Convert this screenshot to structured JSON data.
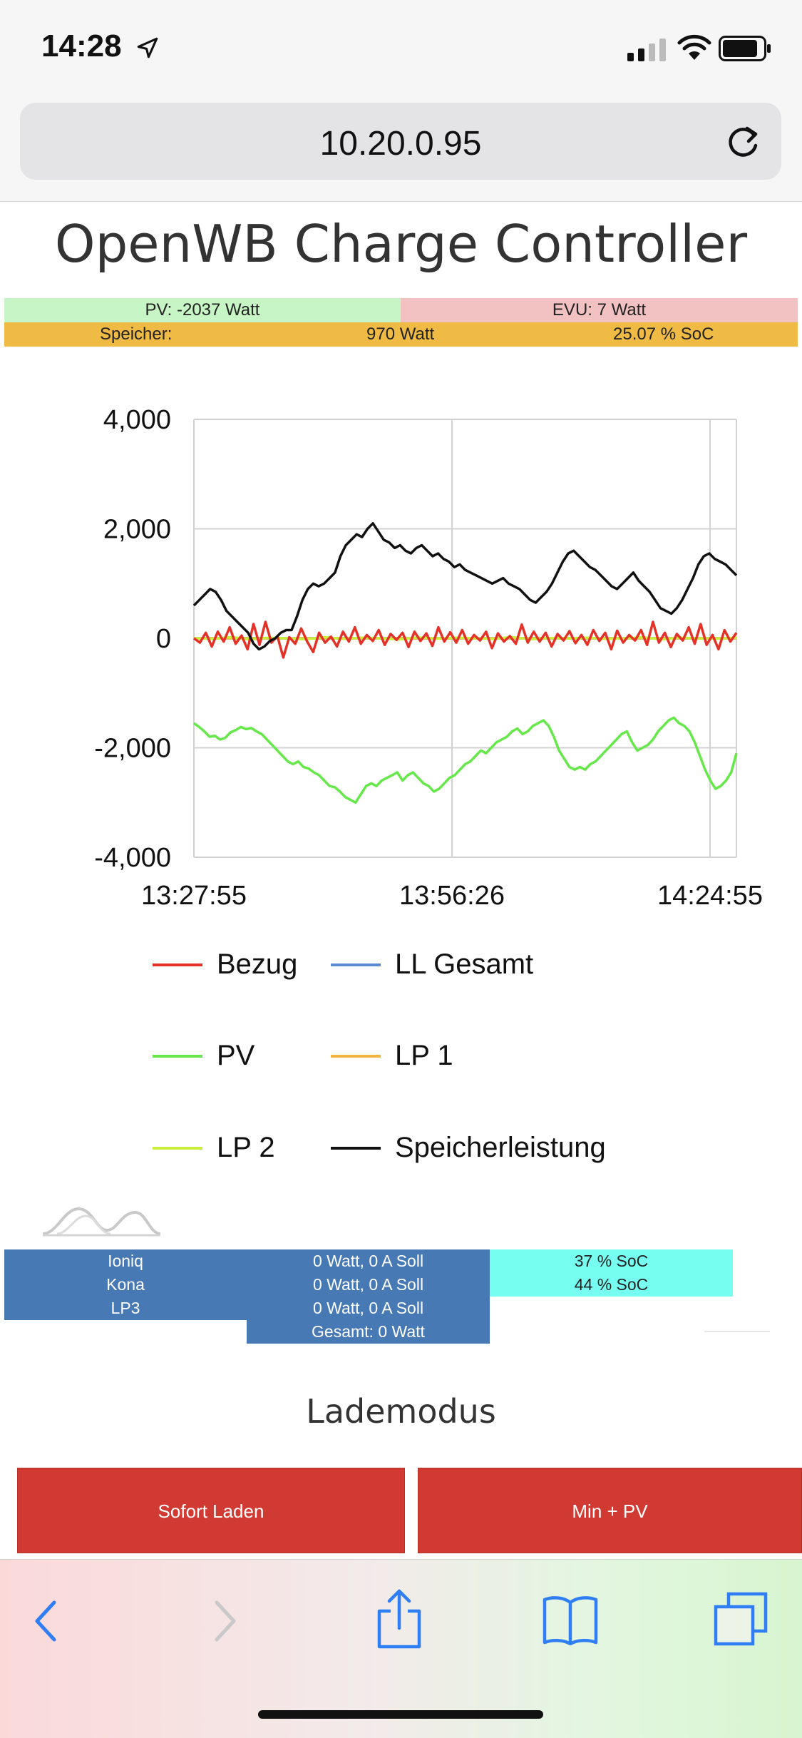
{
  "status": {
    "time": "14:28"
  },
  "browser": {
    "url": "10.20.0.95"
  },
  "page": {
    "title": "OpenWB Charge Controller"
  },
  "summary": {
    "pv": "PV: -2037 Watt",
    "evu": "EVU: 7 Watt",
    "speicher_label": "Speicher:",
    "speicher_watt": "970 Watt",
    "speicher_soc": "25.07 % SoC"
  },
  "chart_data": {
    "type": "line",
    "y_ticks": [
      "4,000",
      "2,000",
      "0",
      "-2,000",
      "-4,000"
    ],
    "x_ticks": [
      "13:27:55",
      "13:56:26",
      "14:24:55"
    ],
    "ylim": [
      -4000,
      4000
    ],
    "grid": true,
    "legend_position": "bottom",
    "series": [
      {
        "name": "Bezug",
        "color": "#e53228",
        "values": [
          0,
          -80,
          100,
          -150,
          120,
          -60,
          200,
          -100,
          50,
          -200,
          260,
          -120,
          300,
          -80,
          40,
          -350,
          20,
          -100,
          180,
          -60,
          -250,
          100,
          -80,
          30,
          -150,
          120,
          -60,
          200,
          -100,
          60,
          -50,
          150,
          -120,
          80,
          -30,
          100,
          -160,
          120,
          -50,
          90,
          -140,
          200,
          -60,
          110,
          -80,
          150,
          -100,
          60,
          -40,
          120,
          -180,
          90,
          -60,
          40,
          -100,
          250,
          -80,
          120,
          -60,
          100,
          -150,
          80,
          -40,
          130,
          -90,
          60,
          -120,
          150,
          -50,
          100,
          -200,
          140,
          -80,
          60,
          -40,
          150,
          -120,
          300,
          -80,
          100,
          -160,
          80,
          -40,
          200,
          -100,
          260,
          -120,
          60,
          -200,
          150,
          -60,
          100
        ]
      },
      {
        "name": "LL Gesamt",
        "color": "#5b8bd0",
        "values": [
          0,
          0,
          0,
          0,
          0,
          0,
          0,
          0,
          0,
          0
        ]
      },
      {
        "name": "PV",
        "color": "#66e84a",
        "values": [
          -1550,
          -1620,
          -1700,
          -1800,
          -1780,
          -1850,
          -1820,
          -1720,
          -1680,
          -1620,
          -1660,
          -1640,
          -1700,
          -1750,
          -1850,
          -1950,
          -2050,
          -2150,
          -2250,
          -2300,
          -2250,
          -2350,
          -2380,
          -2450,
          -2500,
          -2600,
          -2700,
          -2720,
          -2800,
          -2900,
          -2950,
          -3000,
          -2850,
          -2700,
          -2650,
          -2700,
          -2600,
          -2550,
          -2500,
          -2450,
          -2600,
          -2500,
          -2450,
          -2550,
          -2650,
          -2700,
          -2800,
          -2750,
          -2650,
          -2550,
          -2500,
          -2400,
          -2300,
          -2250,
          -2150,
          -2050,
          -2100,
          -2000,
          -1900,
          -1850,
          -1800,
          -1700,
          -1650,
          -1750,
          -1700,
          -1600,
          -1550,
          -1500,
          -1600,
          -1800,
          -2050,
          -2200,
          -2350,
          -2400,
          -2350,
          -2400,
          -2300,
          -2250,
          -2150,
          -2050,
          -1950,
          -1850,
          -1750,
          -1700,
          -1900,
          -2050,
          -2000,
          -1950,
          -1850,
          -1700,
          -1600,
          -1500,
          -1450,
          -1550,
          -1600,
          -1700,
          -1900,
          -2150,
          -2400,
          -2600,
          -2750,
          -2700,
          -2600,
          -2450,
          -2100
        ]
      },
      {
        "name": "LP 1",
        "color": "#f3b53d",
        "values": [
          0,
          0,
          0,
          0,
          0,
          0,
          0,
          0,
          0,
          0
        ]
      },
      {
        "name": "LP 2",
        "color": "#c7ef3c",
        "values": [
          0,
          -10,
          20,
          -20,
          10,
          0,
          -15,
          20,
          -10,
          10,
          0,
          -20,
          15,
          -5,
          10,
          0,
          -10,
          20,
          -15,
          5,
          0,
          10,
          -10,
          0,
          15,
          -20,
          10,
          0,
          -5,
          10
        ]
      },
      {
        "name": "Speicherleistung",
        "color": "#111111",
        "values": [
          600,
          700,
          800,
          900,
          850,
          700,
          500,
          400,
          300,
          200,
          100,
          -100,
          -200,
          -150,
          -50,
          0,
          100,
          150,
          150,
          400,
          700,
          900,
          1000,
          950,
          1000,
          1100,
          1200,
          1500,
          1700,
          1800,
          1900,
          1850,
          2000,
          2100,
          1950,
          1800,
          1750,
          1650,
          1700,
          1600,
          1550,
          1650,
          1700,
          1600,
          1500,
          1550,
          1450,
          1400,
          1300,
          1350,
          1250,
          1200,
          1150,
          1100,
          1050,
          1000,
          1050,
          1100,
          1000,
          950,
          900,
          800,
          700,
          650,
          750,
          850,
          1000,
          1200,
          1400,
          1550,
          1600,
          1500,
          1400,
          1300,
          1250,
          1150,
          1050,
          950,
          900,
          1000,
          1100,
          1200,
          1050,
          950,
          850,
          700,
          550,
          500,
          450,
          550,
          700,
          900,
          1100,
          1350,
          1500,
          1550,
          1450,
          1400,
          1350,
          1250,
          1150
        ]
      }
    ]
  },
  "lp_table": {
    "rows": [
      {
        "name": "Ioniq",
        "power": "0 Watt, 0 A Soll",
        "soc": "37 % SoC"
      },
      {
        "name": "Kona",
        "power": "0 Watt, 0 A Soll",
        "soc": "44 % SoC"
      },
      {
        "name": "LP3",
        "power": "0 Watt, 0 A Soll"
      }
    ],
    "total": "Gesamt: 0 Watt"
  },
  "lademodus": {
    "heading": "Lademodus",
    "buttons": [
      "Sofort Laden",
      "Min + PV"
    ]
  },
  "toolbar": {
    "icons": [
      "back-icon",
      "forward-icon",
      "share-icon",
      "bookmarks-icon",
      "tabs-icon"
    ]
  }
}
